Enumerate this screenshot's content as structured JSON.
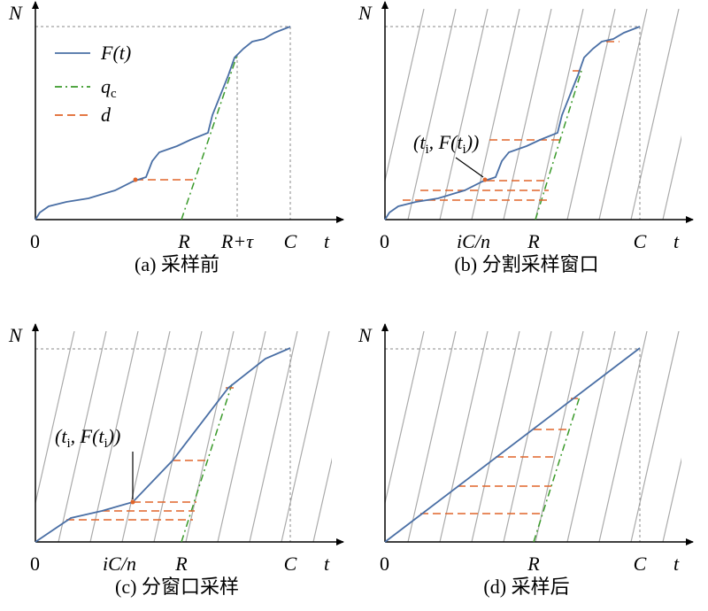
{
  "panels": [
    {
      "y_label": "N",
      "x_label": "t",
      "origin": "0",
      "x_ticks": [
        "R",
        "R+τ",
        "C"
      ],
      "caption": "(a) 采样前",
      "legend": [
        {
          "label": "F(t)"
        },
        {
          "label": "q",
          "sub": "c"
        },
        {
          "label": "d"
        }
      ]
    },
    {
      "y_label": "N",
      "x_label": "t",
      "origin": "0",
      "x_ticks": [
        "iC/n",
        "R",
        "C"
      ],
      "caption": "(b) 分割采样窗口",
      "annotation": [
        "(t",
        "i",
        ", F(t",
        "i",
        "))"
      ]
    },
    {
      "y_label": "N",
      "x_label": "t",
      "origin": "0",
      "x_ticks": [
        "iC/n",
        "R",
        "C"
      ],
      "caption": "(c) 分窗口采样",
      "annotation": [
        "(t",
        "i",
        ", F(t",
        "i",
        "))"
      ]
    },
    {
      "y_label": "N",
      "x_label": "t",
      "origin": "0",
      "x_ticks": [
        "R",
        "C"
      ],
      "caption": "(d) 采样后"
    }
  ]
}
